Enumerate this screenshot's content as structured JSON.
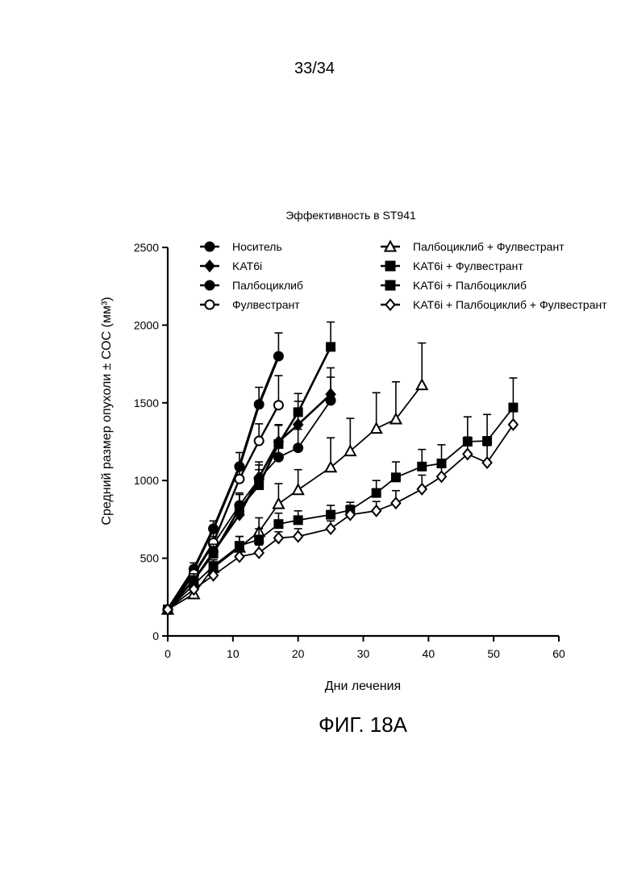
{
  "page": {
    "number": "33/34",
    "figure_caption": "ФИГ. 18А"
  },
  "chart_data": {
    "type": "line",
    "title": "Эффективность в ST941",
    "xlabel": "Дни лечения",
    "ylabel": "Средний размер опухоли ± СОС (мм³)",
    "xlim": [
      0,
      60
    ],
    "ylim": [
      0,
      2500
    ],
    "x_ticks": [
      0,
      10,
      20,
      30,
      40,
      50,
      60
    ],
    "y_ticks": [
      0,
      500,
      1000,
      1500,
      2000,
      2500
    ],
    "grid": false,
    "legend_position": "top",
    "series": [
      {
        "name": "Носитель",
        "marker": "circle-filled",
        "line_width": 3.2,
        "x": [
          0,
          4,
          7,
          11,
          14,
          17
        ],
        "y": [
          170,
          430,
          690,
          1090,
          1490,
          1800
        ],
        "err": [
          0,
          40,
          50,
          90,
          110,
          150
        ]
      },
      {
        "name": "KAT6i",
        "marker": "diamond-filled",
        "line_width": 2.6,
        "x": [
          0,
          4,
          7,
          11,
          14,
          17,
          20,
          25
        ],
        "y": [
          170,
          360,
          540,
          780,
          1020,
          1250,
          1360,
          1555
        ],
        "err": [
          0,
          40,
          55,
          80,
          100,
          110,
          150,
          170
        ]
      },
      {
        "name": "Палбоциклиб",
        "marker": "circle-filled",
        "line_width": 1.8,
        "x": [
          0,
          4,
          7,
          11,
          14,
          17,
          20,
          25
        ],
        "y": [
          170,
          390,
          590,
          840,
          1010,
          1150,
          1210,
          1515
        ],
        "err": [
          0,
          40,
          50,
          80,
          90,
          100,
          120,
          150
        ]
      },
      {
        "name": "Фулвестрант",
        "marker": "circle-open",
        "line_width": 2.4,
        "x": [
          0,
          4,
          7,
          11,
          14,
          17
        ],
        "y": [
          170,
          400,
          600,
          1010,
          1255,
          1485
        ],
        "err": [
          0,
          40,
          60,
          90,
          110,
          190
        ]
      },
      {
        "name": "Палбоциклиб + Фулвестрант",
        "marker": "triangle-open",
        "line_width": 1.8,
        "x": [
          0,
          4,
          7,
          11,
          14,
          17,
          20,
          25,
          28,
          32,
          35,
          39
        ],
        "y": [
          170,
          270,
          440,
          570,
          670,
          850,
          940,
          1085,
          1190,
          1335,
          1395,
          1615
        ],
        "err": [
          0,
          30,
          50,
          70,
          90,
          130,
          130,
          190,
          210,
          230,
          240,
          270
        ]
      },
      {
        "name": "KAT6i + Фулвестрант",
        "marker": "square-filled",
        "line_width": 2.6,
        "x": [
          0,
          4,
          7,
          11,
          14,
          17,
          20,
          25
        ],
        "y": [
          170,
          360,
          530,
          820,
          970,
          1235,
          1440,
          1860
        ],
        "err": [
          0,
          40,
          60,
          90,
          100,
          120,
          120,
          160
        ]
      },
      {
        "name": "KAT6i + Палбоциклиб",
        "marker": "square-filled",
        "line_width": 1.8,
        "x": [
          0,
          4,
          7,
          11,
          14,
          17,
          20,
          25,
          28,
          32,
          35,
          39,
          42,
          46,
          49,
          53
        ],
        "y": [
          170,
          330,
          450,
          580,
          620,
          720,
          745,
          780,
          810,
          920,
          1020,
          1090,
          1110,
          1250,
          1255,
          1470
        ],
        "err": [
          0,
          30,
          40,
          60,
          70,
          70,
          60,
          60,
          50,
          80,
          100,
          110,
          120,
          160,
          170,
          190
        ]
      },
      {
        "name": "KAT6i + Палбоциклиб + Фулвестрант",
        "marker": "diamond-open",
        "line_width": 1.8,
        "x": [
          0,
          4,
          7,
          11,
          14,
          17,
          20,
          25,
          28,
          32,
          35,
          39,
          42,
          46,
          49,
          53
        ],
        "y": [
          170,
          300,
          390,
          510,
          535,
          630,
          640,
          690,
          780,
          805,
          855,
          945,
          1025,
          1170,
          1115,
          1360
        ],
        "err": [
          0,
          30,
          30,
          40,
          50,
          40,
          50,
          50,
          60,
          60,
          80,
          90,
          90,
          110,
          110,
          120
        ]
      }
    ],
    "legend_left_labels": [
      {
        "name": "Носитель",
        "marker": "circle-filled"
      },
      {
        "name": "KAT6i",
        "marker": "diamond-filled"
      },
      {
        "name": "Палбоциклиб",
        "marker": "circle-filled"
      },
      {
        "name": "Фулвестрант",
        "marker": "circle-open"
      }
    ],
    "legend_right_labels": [
      {
        "name": "Палбоциклиб + Фулвестрант",
        "marker": "triangle-open"
      },
      {
        "name": "KAT6i + Фулвестрант",
        "marker": "square-filled"
      },
      {
        "name": "KAT6i + Палбоциклиб",
        "marker": "square-filled"
      },
      {
        "name": "KAT6i + Палбоциклиб + Фулвестрант",
        "marker": "diamond-open"
      }
    ]
  }
}
